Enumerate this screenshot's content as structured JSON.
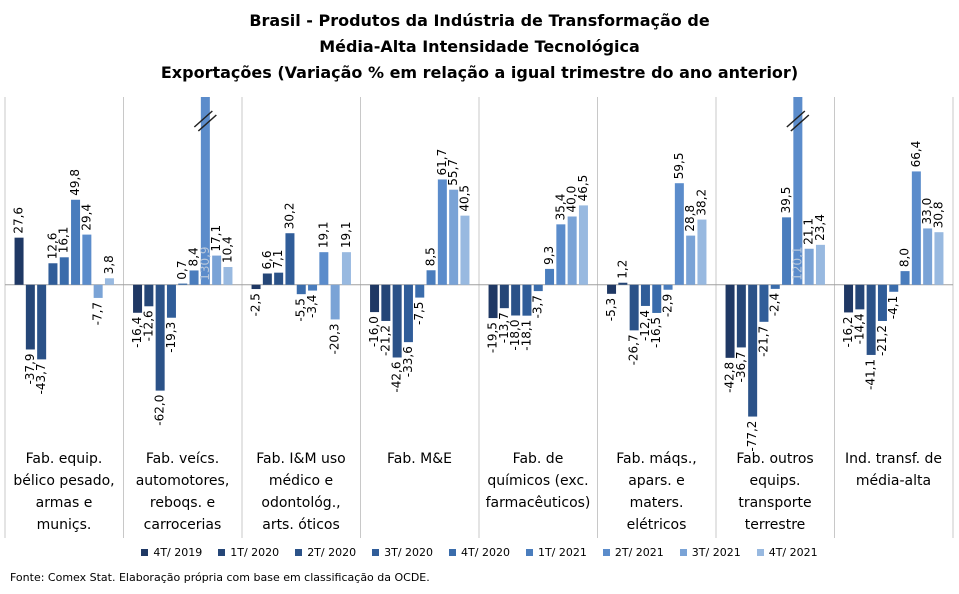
{
  "chart_data": {
    "type": "bar",
    "title": "Brasil - Produtos da Indústria de Transformação de\nMédia-Alta Intensidade Tecnológica",
    "subtitle": "Exportações (Variação % em relação a igual trimestre do ano anterior)",
    "source": "Fonte: Comex Stat. Elaboração própria com base em classificação da OCDE.",
    "categories": [
      "Fab. equip.\nbélico pesado,\narmas e\nmuniçs.",
      "Fab. veícs.\nautomotores,\nreboqs. e\ncarrocerias",
      "Fab. I&M uso\nmédico e\nodontológ.,\narts. óticos",
      "Fab. M&E",
      "Fab. de\nquímicos (exc.\nfarmacêuticos)",
      "Fab. máqs.,\napars. e\nmaters.\nelétricos",
      "Fab. outros\nequips.\ntransporte\nterrestre",
      "Ind. transf. de\nmédia-alta"
    ],
    "ylim": [
      -88,
      110
    ],
    "series": [
      {
        "name": "4T/ 2019",
        "color": "#1f3864",
        "values": [
          27.6,
          -16.4,
          -2.5,
          -16.0,
          -19.5,
          -5.3,
          -42.8,
          -16.2
        ],
        "value_labels": [
          "27,6",
          "-16,4",
          "-2,5",
          "-16,0",
          "-19,5",
          "-5,3",
          "-42,8",
          "-16,2"
        ]
      },
      {
        "name": "1T/ 2020",
        "color": "#254677",
        "values": [
          -37.9,
          -12.6,
          6.6,
          -21.2,
          -13.7,
          1.2,
          -36.7,
          -14.4
        ],
        "value_labels": [
          "-37,9",
          "-12,6",
          "6,6",
          "-21,2",
          "-13,7",
          "1,2",
          "-36,7",
          "-14,4"
        ]
      },
      {
        "name": "2T/ 2020",
        "color": "#2b5288",
        "values": [
          -43.7,
          -62.0,
          7.1,
          -42.6,
          -18.0,
          -26.7,
          -77.2,
          -41.1
        ],
        "value_labels": [
          "-43,7",
          "-62,0",
          "7,1",
          "-42,6",
          "-18,0",
          "-26,7",
          "-77,2",
          "-41,1"
        ]
      },
      {
        "name": "3T/ 2020",
        "color": "#305d99",
        "values": [
          12.6,
          -19.3,
          30.2,
          -33.6,
          -18.1,
          -12.4,
          -21.7,
          -21.2
        ],
        "value_labels": [
          "12,6",
          "-19,3",
          "30,2",
          "-33,6",
          "-18,1",
          "-12,4",
          "-21,7",
          "-21,2"
        ]
      },
      {
        "name": "4T/ 2020",
        "color": "#3a6cab",
        "values": [
          16.1,
          0.7,
          -5.5,
          -7.5,
          -3.7,
          -16.5,
          -2.4,
          -4.1
        ],
        "value_labels": [
          "16,1",
          "0,7",
          "-5,5",
          "-7,5",
          "-3,7",
          "-16,5",
          "-2,4",
          "-4,1"
        ]
      },
      {
        "name": "1T/ 2021",
        "color": "#4a7dbd",
        "values": [
          49.8,
          8.4,
          -3.4,
          8.5,
          9.3,
          -2.9,
          39.5,
          8.0
        ],
        "value_labels": [
          "49,8",
          "8,4",
          "-3,4",
          "8,5",
          "9,3",
          "-2,9",
          "39,5",
          "8,0"
        ]
      },
      {
        "name": "2T/ 2021",
        "color": "#5b8ccb",
        "values": [
          29.4,
          130.9,
          19.1,
          61.7,
          35.4,
          59.5,
          120.1,
          66.4
        ],
        "value_labels": [
          "29,4",
          "130,9",
          "19,1",
          "61,7",
          "35,4",
          "59,5",
          "120,1",
          "66,4"
        ]
      },
      {
        "name": "3T/ 2021",
        "color": "#7aa3d6",
        "values": [
          -7.7,
          17.1,
          -20.3,
          55.7,
          40.0,
          28.8,
          21.1,
          33.0
        ],
        "value_labels": [
          "-7,7",
          "17,1",
          "-20,3",
          "55,7",
          "40,0",
          "28,8",
          "21,1",
          "33,0"
        ]
      },
      {
        "name": "4T/ 2021",
        "color": "#98b9e0",
        "values": [
          3.8,
          10.4,
          19.1,
          40.5,
          46.5,
          38.2,
          23.4,
          30.8
        ],
        "value_labels": [
          "3,8",
          "10,4",
          "19,1",
          "40,5",
          "46,5",
          "38,2",
          "23,4",
          "30,8"
        ]
      }
    ]
  }
}
